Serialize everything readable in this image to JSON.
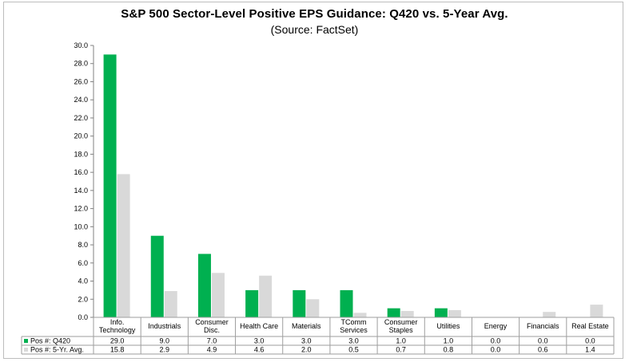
{
  "chart_data": {
    "type": "bar",
    "title": "S&P 500 Sector-Level Positive EPS Guidance: Q420 vs. 5-Year Avg.",
    "subtitle": "(Source: FactSet)",
    "categories": [
      [
        "Info.",
        "Technology"
      ],
      [
        "Industrials"
      ],
      [
        "Consumer",
        "Disc."
      ],
      [
        "Health Care"
      ],
      [
        "Materials"
      ],
      [
        "TComm",
        "Services"
      ],
      [
        "Consumer",
        "Staples"
      ],
      [
        "Utilities"
      ],
      [
        "Energy"
      ],
      [
        "Financials"
      ],
      [
        "Real Estate"
      ]
    ],
    "series": [
      {
        "name": "Pos #: Q420",
        "color": "#00b050",
        "values": [
          29.0,
          9.0,
          7.0,
          3.0,
          3.0,
          3.0,
          1.0,
          1.0,
          0.0,
          0.0,
          0.0
        ],
        "labels": [
          "29.0",
          "9.0",
          "7.0",
          "3.0",
          "3.0",
          "3.0",
          "1.0",
          "1.0",
          "0.0",
          "0.0",
          "0.0"
        ]
      },
      {
        "name": "Pos #: 5-Yr. Avg.",
        "color": "#d9d9d9",
        "values": [
          15.8,
          2.9,
          4.9,
          4.6,
          2.0,
          0.5,
          0.7,
          0.8,
          0.0,
          0.6,
          1.4
        ],
        "labels": [
          "15.8",
          "2.9",
          "4.9",
          "4.6",
          "2.0",
          "0.5",
          "0.7",
          "0.8",
          "0.0",
          "0.6",
          "1.4"
        ]
      }
    ],
    "ylim": [
      0,
      30
    ],
    "yticks": [
      "0.0",
      "2.0",
      "4.0",
      "6.0",
      "8.0",
      "10.0",
      "12.0",
      "14.0",
      "16.0",
      "18.0",
      "20.0",
      "22.0",
      "24.0",
      "26.0",
      "28.0",
      "30.0"
    ],
    "xlabel": "",
    "ylabel": "",
    "grid": false,
    "legend": "data-table"
  }
}
